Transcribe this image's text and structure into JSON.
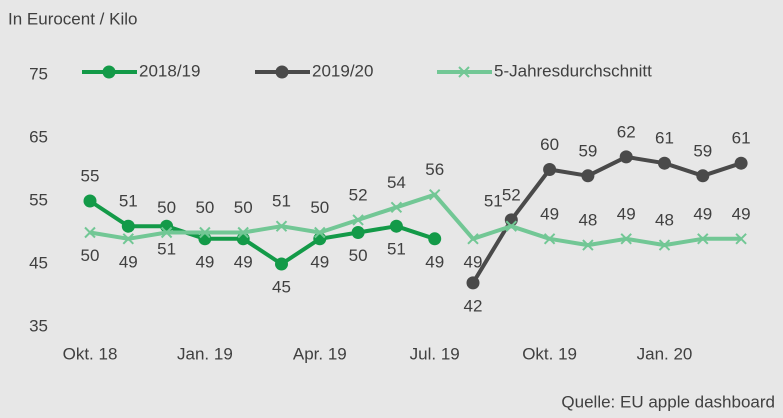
{
  "chart_data": {
    "type": "line",
    "subtitle": "In Eurocent / Kilo",
    "source": "Quelle: EU apple dashboard",
    "categories": [
      "Okt. 18",
      null,
      null,
      "Jan. 19",
      null,
      null,
      "Apr. 19",
      null,
      null,
      "Jul. 19",
      null,
      null,
      "Okt. 19",
      null,
      null,
      "Jan. 20",
      null,
      null
    ],
    "series": [
      {
        "name": "2018/19",
        "color": "#139a48",
        "marker": "circle",
        "values": [
          55,
          51,
          51,
          49,
          49,
          45,
          49,
          50,
          51,
          49,
          null,
          null,
          null,
          null,
          null,
          null,
          null,
          null
        ]
      },
      {
        "name": "2019/20",
        "color": "#4a4a4a",
        "marker": "circle",
        "values": [
          null,
          null,
          null,
          null,
          null,
          null,
          null,
          null,
          null,
          null,
          42,
          52,
          60,
          59,
          62,
          61,
          59,
          61
        ]
      },
      {
        "name": "5-Jahresdurchschnitt",
        "color": "#72c795",
        "marker": "x",
        "values": [
          50,
          49,
          50,
          50,
          50,
          51,
          50,
          52,
          54,
          56,
          49,
          51,
          49,
          48,
          49,
          48,
          49,
          49
        ]
      }
    ],
    "ylim": [
      35,
      75
    ],
    "yticks": [
      35,
      45,
      55,
      65,
      75
    ],
    "grid": false,
    "legend": "top"
  }
}
